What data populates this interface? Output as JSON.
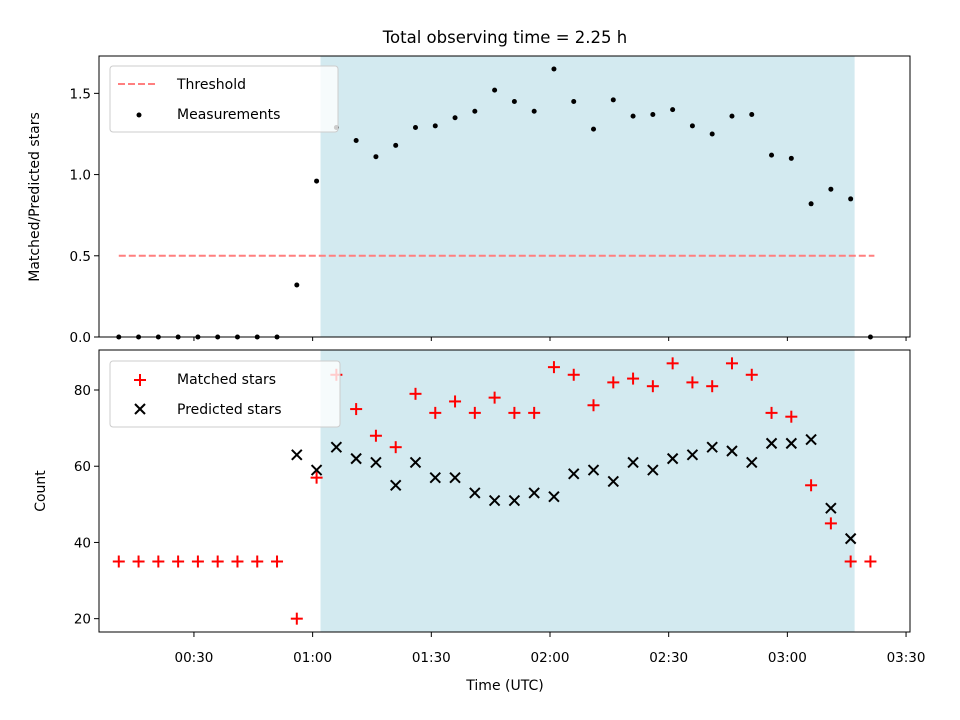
{
  "chart_data": [
    {
      "type": "scatter",
      "title": "Total observing time = 2.25 h",
      "xlabel": "",
      "ylabel": "Matched/Predicted stars",
      "xlim": [
        "00:06",
        "03:31"
      ],
      "ylim": [
        0,
        1.73
      ],
      "y_ticks": [
        0.0,
        0.5,
        1.0,
        1.5
      ],
      "y_tick_labels": [
        "0.0",
        "0.5",
        "1.0",
        "1.5"
      ],
      "observing_window": [
        "01:02",
        "03:17"
      ],
      "observing_window_color": "#d3eaf0",
      "threshold": {
        "name": "Threshold",
        "y": 0.5,
        "x_start": "00:11",
        "x_end": "03:22",
        "color": "#ff7f7f",
        "style": "dashed"
      },
      "series": [
        {
          "name": "Measurements",
          "marker": "dot",
          "color": "#000000",
          "x": [
            "00:11",
            "00:16",
            "00:21",
            "00:26",
            "00:31",
            "00:36",
            "00:41",
            "00:46",
            "00:51",
            "00:56",
            "01:01",
            "01:06",
            "01:11",
            "01:16",
            "01:21",
            "01:26",
            "01:31",
            "01:36",
            "01:41",
            "01:46",
            "01:51",
            "01:56",
            "02:01",
            "02:06",
            "02:11",
            "02:16",
            "02:21",
            "02:26",
            "02:31",
            "02:36",
            "02:41",
            "02:46",
            "02:51",
            "02:56",
            "03:01",
            "03:06",
            "03:11",
            "03:16",
            "03:21"
          ],
          "values": [
            0,
            0,
            0,
            0,
            0,
            0,
            0,
            0,
            0,
            0.32,
            0.96,
            1.29,
            1.21,
            1.11,
            1.18,
            1.29,
            1.3,
            1.35,
            1.39,
            1.52,
            1.45,
            1.39,
            1.65,
            1.45,
            1.28,
            1.46,
            1.36,
            1.37,
            1.4,
            1.3,
            1.25,
            1.36,
            1.37,
            1.12,
            1.1,
            0.82,
            0.91,
            0.85,
            0
          ]
        }
      ],
      "legend": {
        "placement": "upper left",
        "entries": [
          "Threshold",
          "Measurements"
        ]
      },
      "grid": false
    },
    {
      "type": "scatter",
      "title": "",
      "xlabel": "Time (UTC)",
      "ylabel": "Count",
      "xlim": [
        "00:06",
        "03:31"
      ],
      "ylim": [
        16.5,
        90.5
      ],
      "x_ticks": [
        "00:30",
        "01:00",
        "01:30",
        "02:00",
        "02:30",
        "03:00",
        "03:30"
      ],
      "y_ticks": [
        20,
        40,
        60,
        80
      ],
      "observing_window": [
        "01:02",
        "03:17"
      ],
      "observing_window_color": "#d3eaf0",
      "series": [
        {
          "name": "Matched stars",
          "marker": "plus",
          "color": "#ff0000",
          "x": [
            "00:11",
            "00:16",
            "00:21",
            "00:26",
            "00:31",
            "00:36",
            "00:41",
            "00:46",
            "00:51",
            "00:56",
            "01:01",
            "01:06",
            "01:11",
            "01:16",
            "01:21",
            "01:26",
            "01:31",
            "01:36",
            "01:41",
            "01:46",
            "01:51",
            "01:56",
            "02:01",
            "02:06",
            "02:11",
            "02:16",
            "02:21",
            "02:26",
            "02:31",
            "02:36",
            "02:41",
            "02:46",
            "02:51",
            "02:56",
            "03:01",
            "03:06",
            "03:11",
            "03:16",
            "03:21"
          ],
          "values": [
            35,
            35,
            35,
            35,
            35,
            35,
            35,
            35,
            35,
            20,
            57,
            84,
            75,
            68,
            65,
            79,
            74,
            77,
            74,
            78,
            74,
            74,
            86,
            84,
            76,
            82,
            83,
            81,
            87,
            82,
            81,
            87,
            84,
            74,
            73,
            55,
            45,
            35,
            35
          ]
        },
        {
          "name": "Predicted stars",
          "marker": "x",
          "color": "#000000",
          "x": [
            "00:56",
            "01:01",
            "01:06",
            "01:11",
            "01:16",
            "01:21",
            "01:26",
            "01:31",
            "01:36",
            "01:41",
            "01:46",
            "01:51",
            "01:56",
            "02:01",
            "02:06",
            "02:11",
            "02:16",
            "02:21",
            "02:26",
            "02:31",
            "02:36",
            "02:41",
            "02:46",
            "02:51",
            "02:56",
            "03:01",
            "03:06",
            "03:11",
            "03:16"
          ],
          "values": [
            63,
            59,
            65,
            62,
            61,
            55,
            61,
            57,
            57,
            53,
            51,
            51,
            53,
            52,
            58,
            59,
            56,
            61,
            59,
            62,
            63,
            65,
            64,
            61,
            66,
            66,
            67,
            49,
            41
          ]
        }
      ],
      "legend": {
        "placement": "upper left",
        "entries": [
          "Matched stars",
          "Predicted stars"
        ]
      },
      "grid": false
    }
  ]
}
